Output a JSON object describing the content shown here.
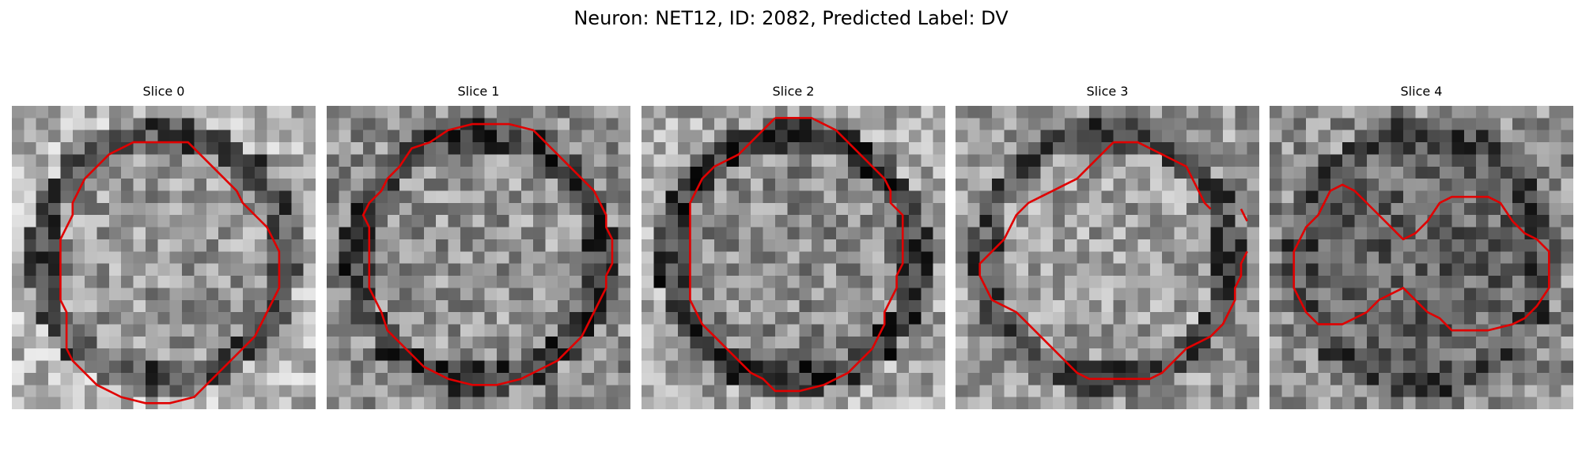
{
  "figure": {
    "title": "Neuron: NET12, ID: 2082, Predicted Label: DV"
  },
  "contour_color": "#e00000",
  "grid_size": 25,
  "slices": [
    {
      "title": "Slice 0",
      "seed": 11,
      "brightness": {
        "center": 0.6,
        "ring": 0.3,
        "background": 0.7
      },
      "contour": [
        [
          12,
          3
        ],
        [
          14.5,
          3
        ],
        [
          15.5,
          4
        ],
        [
          16.5,
          5
        ],
        [
          17.5,
          6
        ],
        [
          18.5,
          7
        ],
        [
          19,
          8
        ],
        [
          20,
          9
        ],
        [
          21,
          10
        ],
        [
          21.5,
          11
        ],
        [
          22,
          12
        ],
        [
          22,
          13
        ],
        [
          22,
          14
        ],
        [
          22,
          15
        ],
        [
          21.5,
          16
        ],
        [
          21,
          17
        ],
        [
          20.5,
          18
        ],
        [
          20,
          19
        ],
        [
          19,
          20
        ],
        [
          18,
          21
        ],
        [
          17,
          22
        ],
        [
          16,
          23
        ],
        [
          15,
          24
        ],
        [
          13,
          24.5
        ],
        [
          11,
          24.5
        ],
        [
          9,
          24
        ],
        [
          7,
          23
        ],
        [
          6,
          22
        ],
        [
          5,
          21
        ],
        [
          4.5,
          20
        ],
        [
          4.5,
          19
        ],
        [
          4.5,
          18
        ],
        [
          4.5,
          17
        ],
        [
          4,
          16
        ],
        [
          4,
          15
        ],
        [
          4,
          14
        ],
        [
          4,
          13
        ],
        [
          4,
          12
        ],
        [
          4,
          11
        ],
        [
          4.5,
          10
        ],
        [
          5,
          9
        ],
        [
          5,
          8
        ],
        [
          5.5,
          7
        ],
        [
          6,
          6
        ],
        [
          7,
          5
        ],
        [
          8,
          4
        ],
        [
          10,
          3
        ]
      ]
    },
    {
      "title": "Slice 1",
      "seed": 23,
      "brightness": {
        "center": 0.58,
        "ring": 0.25,
        "background": 0.55
      },
      "contour": [
        [
          10,
          2
        ],
        [
          12,
          1.5
        ],
        [
          15,
          1.5
        ],
        [
          17,
          2
        ],
        [
          18,
          3
        ],
        [
          19,
          4
        ],
        [
          20,
          5
        ],
        [
          21,
          6
        ],
        [
          22,
          7
        ],
        [
          22.5,
          8
        ],
        [
          23,
          9
        ],
        [
          23,
          10
        ],
        [
          23.5,
          11
        ],
        [
          23.5,
          12
        ],
        [
          23.5,
          13
        ],
        [
          23,
          14
        ],
        [
          23,
          15
        ],
        [
          22.5,
          16
        ],
        [
          22,
          17
        ],
        [
          21.5,
          18
        ],
        [
          21,
          19
        ],
        [
          20,
          20
        ],
        [
          19,
          21
        ],
        [
          18,
          21.5
        ],
        [
          17,
          22
        ],
        [
          16,
          22.5
        ],
        [
          14,
          23
        ],
        [
          12,
          23
        ],
        [
          10,
          22.5
        ],
        [
          9,
          22
        ],
        [
          8,
          21.5
        ],
        [
          7,
          20.5
        ],
        [
          6,
          19.5
        ],
        [
          5,
          18.5
        ],
        [
          4.5,
          17
        ],
        [
          4,
          16
        ],
        [
          3.5,
          15
        ],
        [
          3.5,
          14
        ],
        [
          3.5,
          13
        ],
        [
          3.5,
          12
        ],
        [
          3.5,
          11
        ],
        [
          3.5,
          10
        ],
        [
          3,
          9
        ],
        [
          3.5,
          8
        ],
        [
          4.5,
          7
        ],
        [
          5,
          6
        ],
        [
          6,
          5
        ],
        [
          7,
          3.5
        ],
        [
          8.5,
          3
        ]
      ]
    },
    {
      "title": "Slice 2",
      "seed": 37,
      "brightness": {
        "center": 0.55,
        "ring": 0.22,
        "background": 0.65
      },
      "contour": [
        [
          11,
          1
        ],
        [
          14,
          1
        ],
        [
          15,
          1.5
        ],
        [
          16,
          2
        ],
        [
          17,
          3
        ],
        [
          18,
          4
        ],
        [
          19,
          5
        ],
        [
          20,
          6
        ],
        [
          20.5,
          7
        ],
        [
          20.5,
          8
        ],
        [
          21.5,
          9
        ],
        [
          21.5,
          13
        ],
        [
          21,
          14
        ],
        [
          21,
          15
        ],
        [
          20.5,
          16
        ],
        [
          20,
          17
        ],
        [
          20,
          18
        ],
        [
          19.5,
          19
        ],
        [
          19,
          20
        ],
        [
          18,
          21
        ],
        [
          17,
          22
        ],
        [
          16,
          22.5
        ],
        [
          15,
          23
        ],
        [
          13,
          23.5
        ],
        [
          11,
          23.5
        ],
        [
          10,
          22.5
        ],
        [
          9,
          22
        ],
        [
          8,
          21
        ],
        [
          7,
          20
        ],
        [
          6,
          19
        ],
        [
          5,
          18
        ],
        [
          4.5,
          17
        ],
        [
          4,
          16
        ],
        [
          4,
          15
        ],
        [
          4,
          14
        ],
        [
          4,
          13
        ],
        [
          4,
          12
        ],
        [
          4,
          11
        ],
        [
          4,
          10
        ],
        [
          4,
          9
        ],
        [
          4,
          8
        ],
        [
          4.5,
          7
        ],
        [
          5,
          6
        ],
        [
          6,
          5
        ],
        [
          7,
          4.5
        ],
        [
          8,
          4
        ],
        [
          9,
          3
        ],
        [
          10,
          2
        ]
      ]
    },
    {
      "title": "Slice 3",
      "seed": 53,
      "brightness": {
        "center": 0.62,
        "ring": 0.3,
        "background": 0.6
      },
      "contour": [
        [
          13,
          3
        ],
        [
          15,
          3
        ],
        [
          16,
          3.5
        ],
        [
          17,
          4
        ],
        [
          18,
          4.5
        ],
        [
          19,
          5
        ],
        [
          19.5,
          6
        ],
        [
          20,
          7
        ],
        [
          20.5,
          8
        ],
        [
          21,
          8.5
        ]
      ]
    },
    {
      "title": "Slice 4",
      "seed": 71,
      "brightness": {
        "center": 0.4,
        "ring": 0.3,
        "background": 0.55
      },
      "contour": [
        [
          5,
          7
        ],
        [
          6,
          6.5
        ],
        [
          7,
          7
        ],
        [
          8,
          8
        ],
        [
          9,
          9
        ],
        [
          10,
          10
        ],
        [
          10.5,
          10.5
        ],
        [
          11,
          11
        ],
        [
          12,
          10.5
        ],
        [
          13,
          9.5
        ],
        [
          14,
          8
        ],
        [
          15,
          7.5
        ],
        [
          18,
          7.5
        ],
        [
          19,
          8
        ],
        [
          20,
          9.5
        ],
        [
          21,
          10.5
        ],
        [
          22,
          11
        ],
        [
          23,
          12
        ],
        [
          23,
          15
        ],
        [
          22,
          16.5
        ],
        [
          21,
          17.5
        ],
        [
          20,
          18
        ],
        [
          18,
          18.5
        ],
        [
          15,
          18.5
        ],
        [
          14,
          17.5
        ],
        [
          13,
          17
        ],
        [
          12,
          16
        ],
        [
          11,
          15
        ],
        [
          10,
          15.5
        ],
        [
          9,
          16
        ],
        [
          8,
          17
        ],
        [
          7,
          17.5
        ],
        [
          6,
          18
        ],
        [
          4,
          18
        ],
        [
          3,
          17
        ],
        [
          2.5,
          16
        ],
        [
          2,
          15
        ],
        [
          2,
          13
        ],
        [
          2,
          12
        ],
        [
          2.5,
          11
        ],
        [
          3,
          10
        ],
        [
          4,
          9
        ],
        [
          4.5,
          8
        ]
      ]
    }
  ]
}
